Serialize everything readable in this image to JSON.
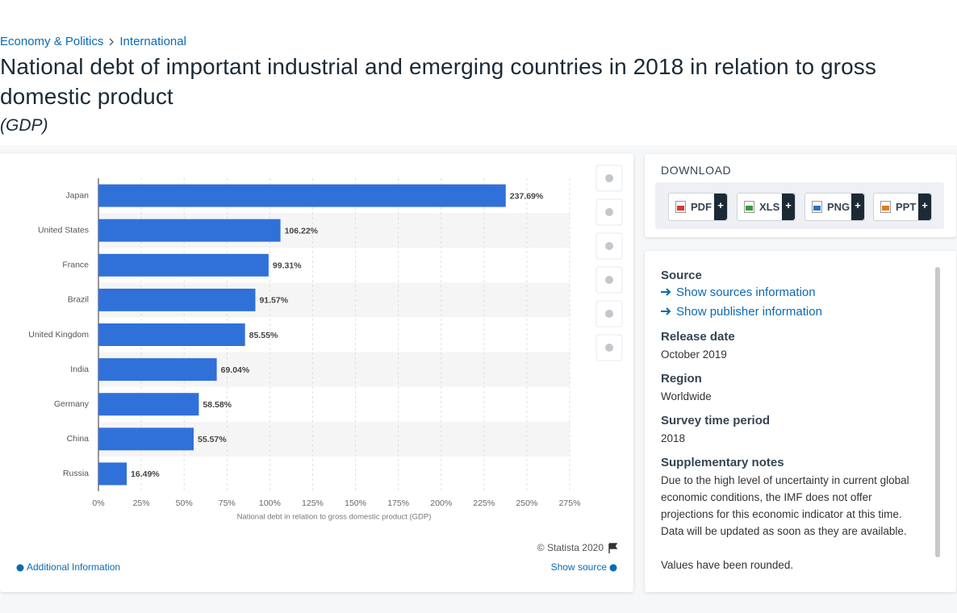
{
  "breadcrumb": [
    "Economy & Politics",
    "International"
  ],
  "title": "National debt of important industrial and emerging countries in 2018 in relation to gross domestic product",
  "subtitle": "(GDP)",
  "chart_data": {
    "type": "bar",
    "orientation": "horizontal",
    "categories": [
      "Japan",
      "United States",
      "France",
      "Brazil",
      "United Kingdom",
      "India",
      "Germany",
      "China",
      "Russia"
    ],
    "values": [
      237.69,
      106.22,
      99.31,
      91.57,
      85.55,
      69.04,
      58.58,
      55.57,
      16.49
    ],
    "value_labels": [
      "237.69%",
      "106.22%",
      "99.31%",
      "91.57%",
      "85.55%",
      "69.04%",
      "58.58%",
      "55.57%",
      "16.49%"
    ],
    "color": "#3071d9",
    "xlim": [
      0,
      275
    ],
    "xticks": [
      {
        "value": 0,
        "label": "0%"
      },
      {
        "value": 25,
        "label": "25%"
      },
      {
        "value": 50,
        "label": "50%"
      },
      {
        "value": 75,
        "label": "75%"
      },
      {
        "value": 100,
        "label": "100%"
      },
      {
        "value": 125,
        "label": "125%"
      },
      {
        "value": 150,
        "label": "150%"
      },
      {
        "value": 175,
        "label": "175%"
      },
      {
        "value": 200,
        "label": "200%"
      },
      {
        "value": 225,
        "label": "225%"
      },
      {
        "value": 250,
        "label": "250%"
      },
      {
        "value": 275,
        "label": "275%"
      }
    ],
    "xlabel": "National debt in relation to gross domestic product (GDP)",
    "grid": true,
    "credit": "© Statista 2020",
    "additional": "Additional Information",
    "show_source": "Show source"
  },
  "download": {
    "heading": "DOWNLOAD",
    "buttons": [
      {
        "label": "PDF",
        "plus": "+"
      },
      {
        "label": "XLS",
        "plus": "+"
      },
      {
        "label": "PNG",
        "plus": "+"
      },
      {
        "label": "PPT",
        "plus": "+"
      }
    ]
  },
  "info": {
    "source_heading": "Source",
    "links": [
      "Show sources information",
      "Show publisher information"
    ],
    "sections": [
      {
        "heading": "Release date",
        "text": "October 2019"
      },
      {
        "heading": "Region",
        "text": "Worldwide"
      },
      {
        "heading": "Survey time period",
        "text": "2018"
      },
      {
        "heading": "Supplementary notes",
        "text": "Due to the high level of uncertainty in current global economic conditions, the IMF does not offer projections for this economic indicator at this time. Data will be updated as soon as they are available."
      }
    ],
    "more": "Values have been rounded."
  }
}
